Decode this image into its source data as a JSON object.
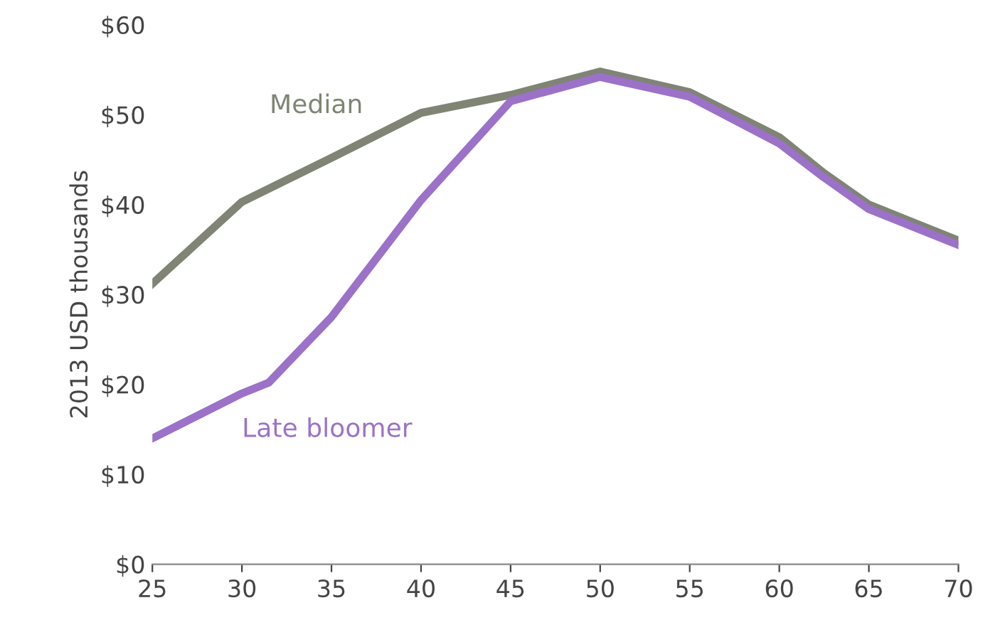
{
  "chart_data": {
    "type": "line",
    "ylabel": "2013 USD thousands",
    "xlim": [
      25,
      70
    ],
    "xticks": [
      25,
      30,
      35,
      40,
      45,
      50,
      55,
      60,
      65,
      70
    ],
    "ylim": [
      0,
      60
    ],
    "yticks": [
      {
        "value": 0,
        "label": "$0"
      },
      {
        "value": 10,
        "label": "$10"
      },
      {
        "value": 20,
        "label": "$20"
      },
      {
        "value": 30,
        "label": "$30"
      },
      {
        "value": 40,
        "label": "$40"
      },
      {
        "value": 50,
        "label": "$50"
      },
      {
        "value": 60,
        "label": "$60"
      }
    ],
    "grid": false,
    "legend": false,
    "marker": "none",
    "line_style": "solid",
    "series": [
      {
        "name": "Median",
        "color": "#7f8474",
        "x": [
          25,
          30,
          35,
          40,
          45,
          50,
          55,
          60,
          62.5,
          65,
          70
        ],
        "values": [
          31.2,
          40.3,
          45.2,
          50.2,
          52.2,
          54.8,
          52.5,
          47.5,
          43.5,
          40,
          36
        ]
      },
      {
        "name": "Late bloomer",
        "color": "#9b72c8",
        "x": [
          25,
          30,
          31.5,
          35,
          40,
          45,
          50,
          55,
          60,
          62.5,
          65,
          70
        ],
        "values": [
          14,
          19,
          20.2,
          27.5,
          40.5,
          51.5,
          54.2,
          52,
          46.8,
          43,
          39.5,
          35.5
        ]
      }
    ]
  }
}
